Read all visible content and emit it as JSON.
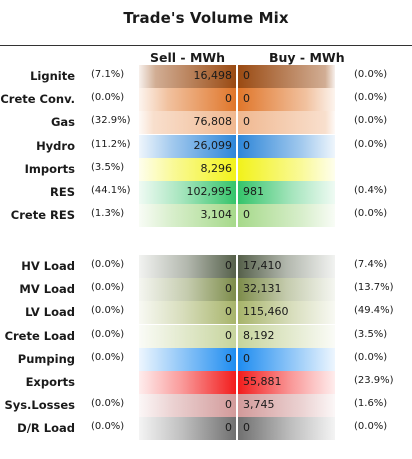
{
  "title": "Trade's Volume Mix",
  "headers": {
    "sell": "Sell - MWh",
    "buy": "Buy - MWh"
  },
  "chart_data": {
    "type": "table",
    "title": "Trade's Volume Mix",
    "columns": [
      "Sell - MWh",
      "Buy - MWh"
    ],
    "groups": [
      {
        "rows": [
          {
            "label": "Lignite",
            "sell_pct": "(7.1%)",
            "sell": "16,498",
            "buy": "0",
            "buy_pct": "(0.0%)",
            "sell_fill": 0.42,
            "buy_fill": 0.0,
            "color": "#9a4a12"
          },
          {
            "label": "Crete Conv.",
            "sell_pct": "(0.0%)",
            "sell": "0",
            "buy": "0",
            "buy_pct": "(0.0%)",
            "sell_fill": 0.55,
            "buy_fill": 0.55,
            "color": "#e0762a"
          },
          {
            "label": "Gas",
            "sell_pct": "(32.9%)",
            "sell": "76,808",
            "buy": "0",
            "buy_pct": "(0.0%)",
            "sell_fill": 0.4,
            "buy_fill": 0.0,
            "color": "#f0b890"
          },
          {
            "label": "Hydro",
            "sell_pct": "(11.2%)",
            "sell": "26,099",
            "buy": "0",
            "buy_pct": "(0.0%)",
            "sell_fill": 0.6,
            "buy_fill": 0.6,
            "color": "#2e86d8"
          },
          {
            "label": "Imports",
            "sell_pct": "(3.5%)",
            "sell": "8,296",
            "buy": "",
            "buy_pct": "",
            "sell_fill": 0.6,
            "buy_fill": 0.6,
            "color": "#f2f21a"
          },
          {
            "label": "RES",
            "sell_pct": "(44.1%)",
            "sell": "102,995",
            "buy": "981",
            "buy_pct": "(0.4%)",
            "sell_fill": 0.7,
            "buy_fill": 0.7,
            "color": "#35c46a"
          },
          {
            "label": "Crete RES",
            "sell_pct": "(1.3%)",
            "sell": "3,104",
            "buy": "0",
            "buy_pct": "(0.0%)",
            "sell_fill": 0.6,
            "buy_fill": 0.6,
            "color": "#a6d98a"
          }
        ]
      },
      {
        "rows": [
          {
            "label": "HV Load",
            "sell_pct": "(0.0%)",
            "sell": "0",
            "buy": "17,410",
            "buy_pct": "(7.4%)",
            "sell_fill": 0.75,
            "buy_fill": 0.75,
            "color": "#55604a"
          },
          {
            "label": "MV Load",
            "sell_pct": "(0.0%)",
            "sell": "0",
            "buy": "32,131",
            "buy_pct": "(13.7%)",
            "sell_fill": 0.75,
            "buy_fill": 0.75,
            "color": "#7d8c4a"
          },
          {
            "label": "LV Load",
            "sell_pct": "(0.0%)",
            "sell": "0",
            "buy": "115,460",
            "buy_pct": "(49.4%)",
            "sell_fill": 0.7,
            "buy_fill": 0.7,
            "color": "#a7b46a"
          },
          {
            "label": "Crete Load",
            "sell_pct": "(0.0%)",
            "sell": "0",
            "buy": "8,192",
            "buy_pct": "(3.5%)",
            "sell_fill": 0.65,
            "buy_fill": 0.65,
            "color": "#c6d49c"
          },
          {
            "label": "Pumping",
            "sell_pct": "(0.0%)",
            "sell": "0",
            "buy": "0",
            "buy_pct": "(0.0%)",
            "sell_fill": 0.65,
            "buy_fill": 0.65,
            "color": "#1e8cf0"
          },
          {
            "label": "Exports",
            "sell_pct": "",
            "sell": "",
            "buy": "55,881",
            "buy_pct": "(23.9%)",
            "sell_fill": 0.7,
            "buy_fill": 0.7,
            "color": "#f21c1c"
          },
          {
            "label": "Sys.Losses",
            "sell_pct": "(0.0%)",
            "sell": "0",
            "buy": "3,745",
            "buy_pct": "(1.6%)",
            "sell_fill": 0.6,
            "buy_fill": 0.6,
            "color": "#d29a9a"
          },
          {
            "label": "D/R Load",
            "sell_pct": "(0.0%)",
            "sell": "0",
            "buy": "0",
            "buy_pct": "(0.0%)",
            "sell_fill": 0.7,
            "buy_fill": 0.7,
            "color": "#707070"
          }
        ]
      }
    ]
  }
}
